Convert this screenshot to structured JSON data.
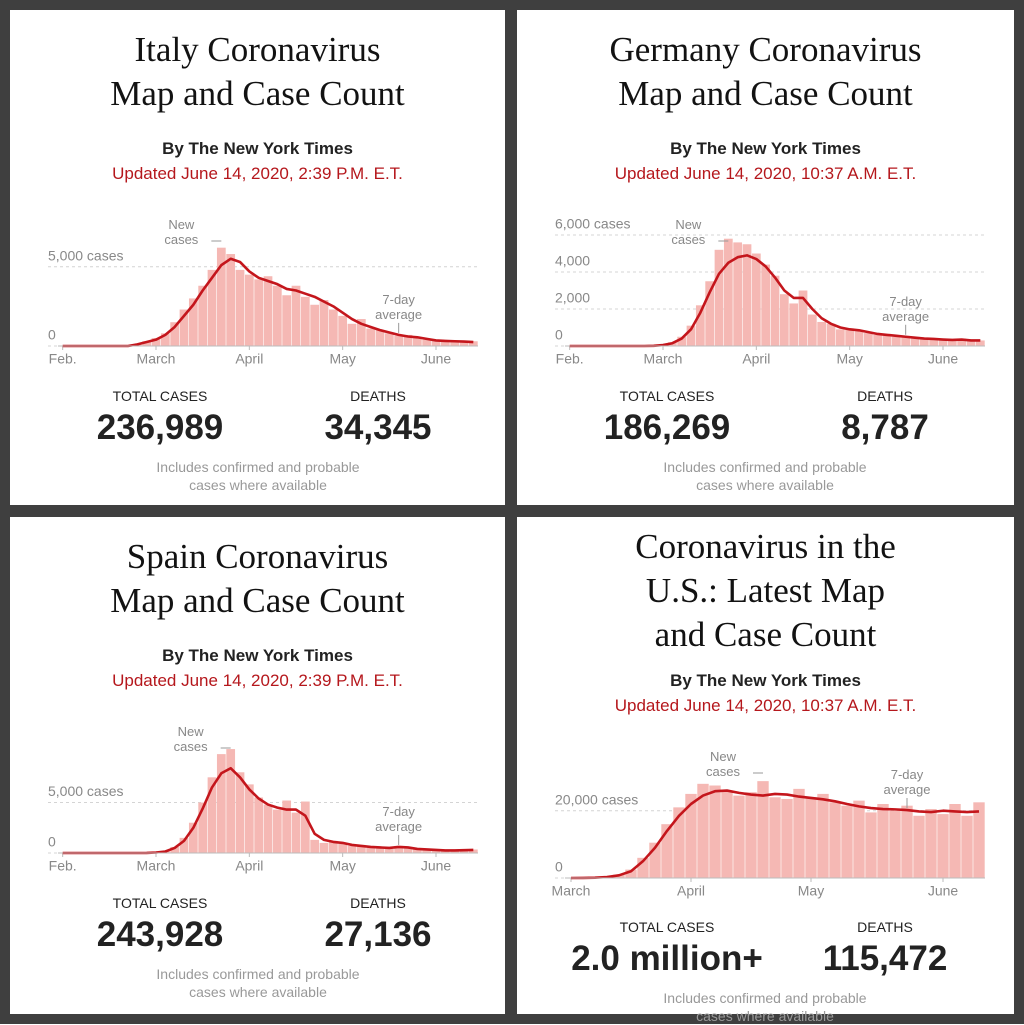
{
  "chart_data": [
    {
      "type": "bar",
      "title": "Italy Coronavirus\nMap and Case Count",
      "byline": "By The New York Times",
      "updated": "Updated June 14, 2020, 2:39 P.M. E.T.",
      "categories": [
        "Feb.",
        null,
        null,
        null,
        null,
        null,
        null,
        null,
        null,
        null,
        "March",
        null,
        null,
        null,
        null,
        null,
        null,
        null,
        null,
        null,
        "April",
        null,
        null,
        null,
        null,
        null,
        null,
        null,
        null,
        null,
        "May",
        null,
        null,
        null,
        null,
        null,
        null,
        null,
        null,
        null,
        "June",
        null,
        null,
        null,
        null
      ],
      "series": [
        {
          "name": "New cases",
          "type": "bar",
          "color": "#f5b8b4",
          "values": [
            0,
            0,
            0,
            0,
            0,
            0,
            0,
            0,
            90,
            300,
            500,
            800,
            1500,
            2300,
            3000,
            3800,
            4800,
            6200,
            5800,
            4800,
            4500,
            4200,
            4400,
            3800,
            3200,
            3800,
            3100,
            2600,
            2900,
            2300,
            1900,
            1400,
            1700,
            1100,
            1000,
            800,
            650,
            700,
            500,
            400,
            350,
            300,
            340,
            250,
            300
          ]
        },
        {
          "name": "7-day average",
          "type": "line",
          "color": "#c4161c",
          "values": [
            0,
            0,
            0,
            0,
            0,
            0,
            0,
            0,
            100,
            250,
            400,
            700,
            1200,
            1900,
            2600,
            3500,
            4300,
            5100,
            5500,
            5300,
            4700,
            4300,
            4100,
            3900,
            3600,
            3500,
            3300,
            3100,
            2800,
            2500,
            2100,
            1700,
            1400,
            1200,
            1000,
            850,
            700,
            600,
            550,
            450,
            350,
            320,
            300,
            280,
            250
          ]
        }
      ],
      "ylim": [
        0,
        7000
      ],
      "yticks": [
        0,
        {
          "value": 5000,
          "label": "5,000 cases"
        }
      ],
      "grid": true,
      "stats": [
        {
          "label": "TOTAL CASES",
          "value": "236,989"
        },
        {
          "label": "DEATHS",
          "value": "34,345"
        }
      ],
      "note": "Includes confirmed and probable cases where available"
    },
    {
      "type": "bar",
      "title": "Germany Coronavirus\nMap and Case Count",
      "byline": "By The New York Times",
      "updated": "Updated June 14, 2020, 10:37 A.M. E.T.",
      "categories": [
        "Feb.",
        null,
        null,
        null,
        null,
        null,
        null,
        null,
        null,
        null,
        "March",
        null,
        null,
        null,
        null,
        null,
        null,
        null,
        null,
        null,
        "April",
        null,
        null,
        null,
        null,
        null,
        null,
        null,
        null,
        null,
        "May",
        null,
        null,
        null,
        null,
        null,
        null,
        null,
        null,
        null,
        "June",
        null,
        null,
        null,
        null
      ],
      "series": [
        {
          "name": "New cases",
          "type": "bar",
          "color": "#f5b8b4",
          "values": [
            0,
            0,
            0,
            0,
            0,
            0,
            0,
            0,
            0,
            20,
            60,
            200,
            500,
            1100,
            2200,
            3500,
            5200,
            5800,
            5600,
            5500,
            5000,
            4400,
            3800,
            2800,
            2300,
            3000,
            1700,
            1300,
            1200,
            900,
            950,
            800,
            700,
            600,
            650,
            500,
            480,
            450,
            400,
            380,
            350,
            300,
            400,
            280,
            300
          ]
        },
        {
          "name": "7-day average",
          "type": "line",
          "color": "#c4161c",
          "values": [
            0,
            0,
            0,
            0,
            0,
            0,
            0,
            0,
            0,
            10,
            50,
            150,
            400,
            900,
            1800,
            2900,
            3900,
            4500,
            4800,
            4900,
            4700,
            4300,
            3700,
            3000,
            2600,
            2600,
            2000,
            1500,
            1200,
            1000,
            900,
            850,
            750,
            650,
            600,
            550,
            500,
            450,
            400,
            380,
            350,
            330,
            350,
            300,
            300
          ]
        }
      ],
      "ylim": [
        0,
        6000
      ],
      "yticks": [
        0,
        {
          "value": 2000,
          "label": "2,000"
        },
        {
          "value": 4000,
          "label": "4,000"
        },
        {
          "value": 6000,
          "label": "6,000 cases"
        }
      ],
      "grid": true,
      "stats": [
        {
          "label": "TOTAL CASES",
          "value": "186,269"
        },
        {
          "label": "DEATHS",
          "value": "8,787"
        }
      ],
      "note": "Includes confirmed and probable cases where available"
    },
    {
      "type": "bar",
      "title": "Spain Coronavirus\nMap and Case Count",
      "byline": "By The New York Times",
      "updated": "Updated June 14, 2020, 2:39 P.M. E.T.",
      "categories": [
        "Feb.",
        null,
        null,
        null,
        null,
        null,
        null,
        null,
        null,
        null,
        "March",
        null,
        null,
        null,
        null,
        null,
        null,
        null,
        null,
        null,
        "April",
        null,
        null,
        null,
        null,
        null,
        null,
        null,
        null,
        null,
        "May",
        null,
        null,
        null,
        null,
        null,
        null,
        null,
        null,
        null,
        "June",
        null,
        null,
        null,
        null
      ],
      "series": [
        {
          "name": "New cases",
          "type": "bar",
          "color": "#f5b8b4",
          "values": [
            0,
            0,
            0,
            0,
            0,
            0,
            0,
            0,
            0,
            30,
            80,
            200,
            600,
            1500,
            3000,
            5000,
            7500,
            9800,
            10300,
            8000,
            6800,
            5500,
            4800,
            4300,
            5200,
            4000,
            5100,
            1300,
            1000,
            1200,
            900,
            700,
            800,
            500,
            600,
            400,
            700,
            500,
            450,
            350,
            300,
            280,
            250,
            300,
            350
          ]
        },
        {
          "name": "7-day average",
          "type": "line",
          "color": "#c4161c",
          "values": [
            0,
            0,
            0,
            0,
            0,
            0,
            0,
            0,
            0,
            10,
            50,
            150,
            500,
            1200,
            2500,
            4400,
            6500,
            7900,
            8400,
            7500,
            6300,
            5400,
            4800,
            4500,
            4300,
            4300,
            3700,
            1900,
            1300,
            1100,
            1000,
            800,
            700,
            600,
            550,
            500,
            600,
            550,
            400,
            350,
            300,
            250,
            250,
            280,
            300
          ]
        }
      ],
      "ylim": [
        0,
        11000
      ],
      "yticks": [
        0,
        {
          "value": 5000,
          "label": "5,000 cases"
        }
      ],
      "grid": true,
      "stats": [
        {
          "label": "TOTAL CASES",
          "value": "243,928"
        },
        {
          "label": "DEATHS",
          "value": "27,136"
        }
      ],
      "note": "Includes confirmed and probable cases where available"
    },
    {
      "type": "bar",
      "title": "Coronavirus in the\nU.S.: Latest Map\nand Case Count",
      "byline": "By The New York Times",
      "updated": "Updated June 14, 2020, 10:37 A.M. E.T.",
      "categories": [
        "March",
        null,
        null,
        null,
        null,
        null,
        null,
        null,
        null,
        null,
        "April",
        null,
        null,
        null,
        null,
        null,
        null,
        null,
        null,
        null,
        "May",
        null,
        null,
        null,
        null,
        null,
        null,
        null,
        null,
        null,
        null,
        "June",
        null,
        null,
        null
      ],
      "series": [
        {
          "name": "New cases",
          "type": "bar",
          "color": "#f5b8b4",
          "values": [
            0,
            30,
            150,
            400,
            1000,
            2500,
            6000,
            10500,
            16000,
            21000,
            25000,
            28000,
            27500,
            26000,
            24500,
            25500,
            28800,
            24000,
            23500,
            26500,
            24000,
            25000,
            22500,
            21500,
            23000,
            19500,
            22000,
            20000,
            21500,
            18500,
            20500,
            19000,
            22000,
            18500,
            22500
          ]
        },
        {
          "name": "7-day average",
          "type": "line",
          "color": "#c4161c",
          "values": [
            0,
            20,
            100,
            300,
            800,
            2000,
            5000,
            9000,
            14000,
            18500,
            22000,
            24500,
            25800,
            26000,
            25300,
            24800,
            24500,
            25000,
            24800,
            24200,
            23800,
            23400,
            22800,
            22000,
            21300,
            20800,
            20500,
            20400,
            20200,
            19800,
            19600,
            20000,
            19800,
            19600,
            19800
          ]
        }
      ],
      "ylim": [
        0,
        33000
      ],
      "yticks": [
        0,
        {
          "value": 20000,
          "label": "20,000 cases"
        }
      ],
      "grid": true,
      "stats": [
        {
          "label": "TOTAL CASES",
          "value": "2.0 million+"
        },
        {
          "label": "DEATHS",
          "value": "115,472"
        }
      ],
      "note": "Includes confirmed and probable cases where available"
    }
  ]
}
